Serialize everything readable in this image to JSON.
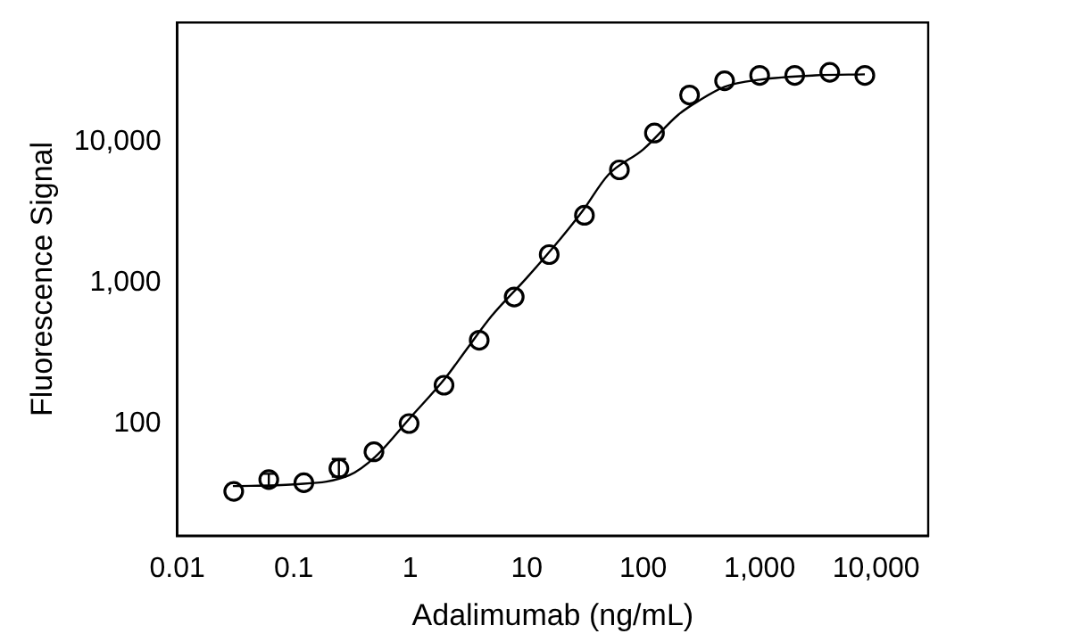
{
  "chart_data": {
    "type": "scatter",
    "xlabel": "Adalimumab (ng/mL)",
    "ylabel": "Fluorescence Signal",
    "log": "xy",
    "grid": false,
    "legend": false,
    "xlim": [
      0.01,
      28000
    ],
    "ylim": [
      16,
      70000
    ],
    "xticks": [
      0.01,
      0.1,
      1,
      10,
      100,
      {
        "value": 1000,
        "label": "1,000"
      },
      {
        "value": 10000,
        "label": "10,000"
      }
    ],
    "yticks": [
      100,
      {
        "value": 1000,
        "label": "1,000"
      },
      {
        "value": 10000,
        "label": "10,000"
      }
    ],
    "series": [
      {
        "marker": "circle",
        "color": "#000000",
        "x": [
          0.0305,
          0.061,
          0.122,
          0.244,
          0.488,
          0.977,
          1.95,
          3.91,
          7.81,
          15.6,
          31.3,
          62.5,
          125,
          250,
          500,
          1000,
          2000,
          4000,
          8000
        ],
        "values": [
          33,
          40,
          38,
          48,
          63,
          100,
          187,
          390,
          790,
          1580,
          3000,
          6300,
          11500,
          21400,
          27000,
          29500,
          29500,
          31000,
          29500
        ],
        "errors": [
          null,
          [
            36,
            44
          ],
          null,
          [
            42,
            56
          ],
          null,
          null,
          null,
          null,
          null,
          null,
          null,
          null,
          null,
          null,
          null,
          null,
          null,
          null,
          null
        ]
      },
      {
        "type": "line",
        "marker": "none",
        "line_style": "solid",
        "color": "#000000",
        "x": [
          0.03,
          0.1,
          0.3,
          0.5,
          1,
          2,
          3,
          5,
          10,
          20,
          30,
          50,
          100,
          200,
          300,
          500,
          1000,
          3000,
          8000
        ],
        "values": [
          36,
          37,
          43,
          58,
          110,
          210,
          330,
          580,
          1080,
          2100,
          3200,
          5800,
          8800,
          15500,
          19500,
          24500,
          27500,
          29500,
          30000
        ]
      }
    ]
  }
}
